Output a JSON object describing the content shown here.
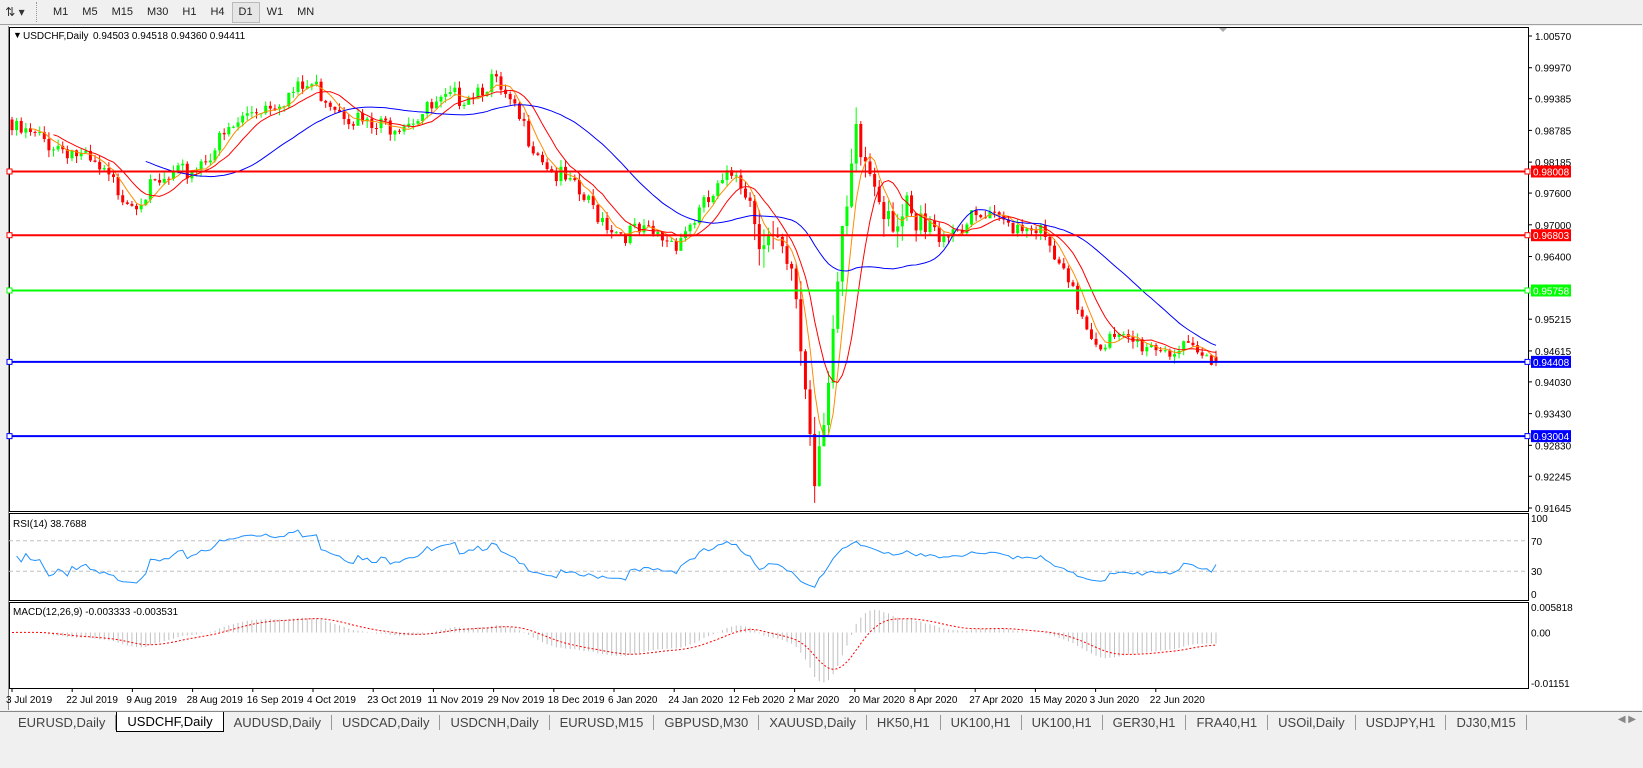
{
  "toolbar": {
    "timeframes": [
      "M1",
      "M5",
      "M15",
      "M30",
      "H1",
      "H4",
      "D1",
      "W1",
      "MN"
    ],
    "active": "D1",
    "icon": "line-studies-icon"
  },
  "chart": {
    "title": "USDCHF,Daily",
    "ohlc": "0.94503 0.94518 0.94360 0.94411",
    "colors": {
      "bull": "#00ff00",
      "bear": "#ff0000",
      "ma_fast": "#ff8c00",
      "ma_mid": "#ff0000",
      "ma_slow": "#0000ff",
      "rsi": "#1e90ff",
      "macd_hist": "#c0c0c0",
      "macd_signal": "#ff0000"
    }
  },
  "chart_data": [
    {
      "type": "candlestick",
      "title": "USDCHF,Daily",
      "ylim": [
        0.91645,
        1.0057
      ],
      "price_ticks": [
        "1.00570",
        "0.99970",
        "0.99385",
        "0.98785",
        "0.98185",
        "0.97600",
        "0.97000",
        "0.96400",
        "0.95215",
        "0.94615",
        "0.94030",
        "0.93430",
        "0.92830",
        "0.92245",
        "0.91645"
      ],
      "date_ticks": [
        "3 Jul 2019",
        "22 Jul 2019",
        "9 Aug 2019",
        "28 Aug 2019",
        "16 Sep 2019",
        "4 Oct 2019",
        "23 Oct 2019",
        "11 Nov 2019",
        "29 Nov 2019",
        "18 Dec 2019",
        "6 Jan 2020",
        "24 Jan 2020",
        "12 Feb 2020",
        "2 Mar 2020",
        "20 Mar 2020",
        "8 Apr 2020",
        "27 Apr 2020",
        "15 May 2020",
        "3 Jun 2020",
        "22 Jun 2020"
      ],
      "approx_closes": [
        {
          "date": "3 Jul 2019",
          "close": 0.9879
        },
        {
          "date": "22 Jul 2019",
          "close": 0.9841
        },
        {
          "date": "9 Aug 2019",
          "close": 0.9747
        },
        {
          "date": "28 Aug 2019",
          "close": 0.9804
        },
        {
          "date": "16 Sep 2019",
          "close": 0.9917
        },
        {
          "date": "4 Oct 2019",
          "close": 0.9964
        },
        {
          "date": "23 Oct 2019",
          "close": 0.9879
        },
        {
          "date": "11 Nov 2019",
          "close": 0.9917
        },
        {
          "date": "29 Nov 2019",
          "close": 0.9974
        },
        {
          "date": "18 Dec 2019",
          "close": 0.9804
        },
        {
          "date": "6 Jan 2020",
          "close": 0.969
        },
        {
          "date": "24 Jan 2020",
          "close": 0.9671
        },
        {
          "date": "12 Feb 2020",
          "close": 0.9804
        },
        {
          "date": "2 Mar 2020",
          "close": 0.9558
        },
        {
          "date": "9 Mar 2020",
          "close": 0.9236
        },
        {
          "date": "20 Mar 2020",
          "close": 0.9841
        },
        {
          "date": "8 Apr 2020",
          "close": 0.9671
        },
        {
          "date": "27 Apr 2020",
          "close": 0.9709
        },
        {
          "date": "15 May 2020",
          "close": 0.97
        },
        {
          "date": "3 Jun 2020",
          "close": 0.9482
        },
        {
          "date": "22 Jun 2020",
          "close": 0.9473
        },
        {
          "date": "1 Jul 2020",
          "close": 0.94411
        }
      ],
      "hlines": [
        {
          "value": "0.98008",
          "color": "#ff0000"
        },
        {
          "value": "0.96803",
          "color": "#ff0000"
        },
        {
          "value": "0.95758",
          "color": "#00ff00"
        },
        {
          "value": "0.94408",
          "color": "#0000ff"
        },
        {
          "value": "0.93004",
          "color": "#0000ff"
        }
      ]
    },
    {
      "type": "line",
      "title": "RSI(14) 38.7688",
      "ylim": [
        0,
        100
      ],
      "ticks": [
        "100",
        "70",
        "30",
        "0"
      ],
      "levels": [
        70,
        30
      ],
      "last": 38.7688
    },
    {
      "type": "bar",
      "title": "MACD(12,26,9) -0.003333 -0.003531",
      "ylim": [
        -0.01151,
        0.005818
      ],
      "ticks": [
        "0.005818",
        "0.00",
        "-0.01151"
      ],
      "last_macd": -0.003333,
      "last_signal": -0.003531
    }
  ],
  "tabs": [
    "EURUSD,Daily",
    "USDCHF,Daily",
    "AUDUSD,Daily",
    "USDCAD,Daily",
    "USDCNH,Daily",
    "EURUSD,M15",
    "GBPUSD,M30",
    "XAUUSD,Daily",
    "HK50,H1",
    "UK100,H1",
    "UK100,H1",
    "GER30,H1",
    "FRA40,H1",
    "USOil,Daily",
    "USDJPY,H1",
    "DJ30,M15"
  ],
  "active_tab": "USDCHF,Daily"
}
